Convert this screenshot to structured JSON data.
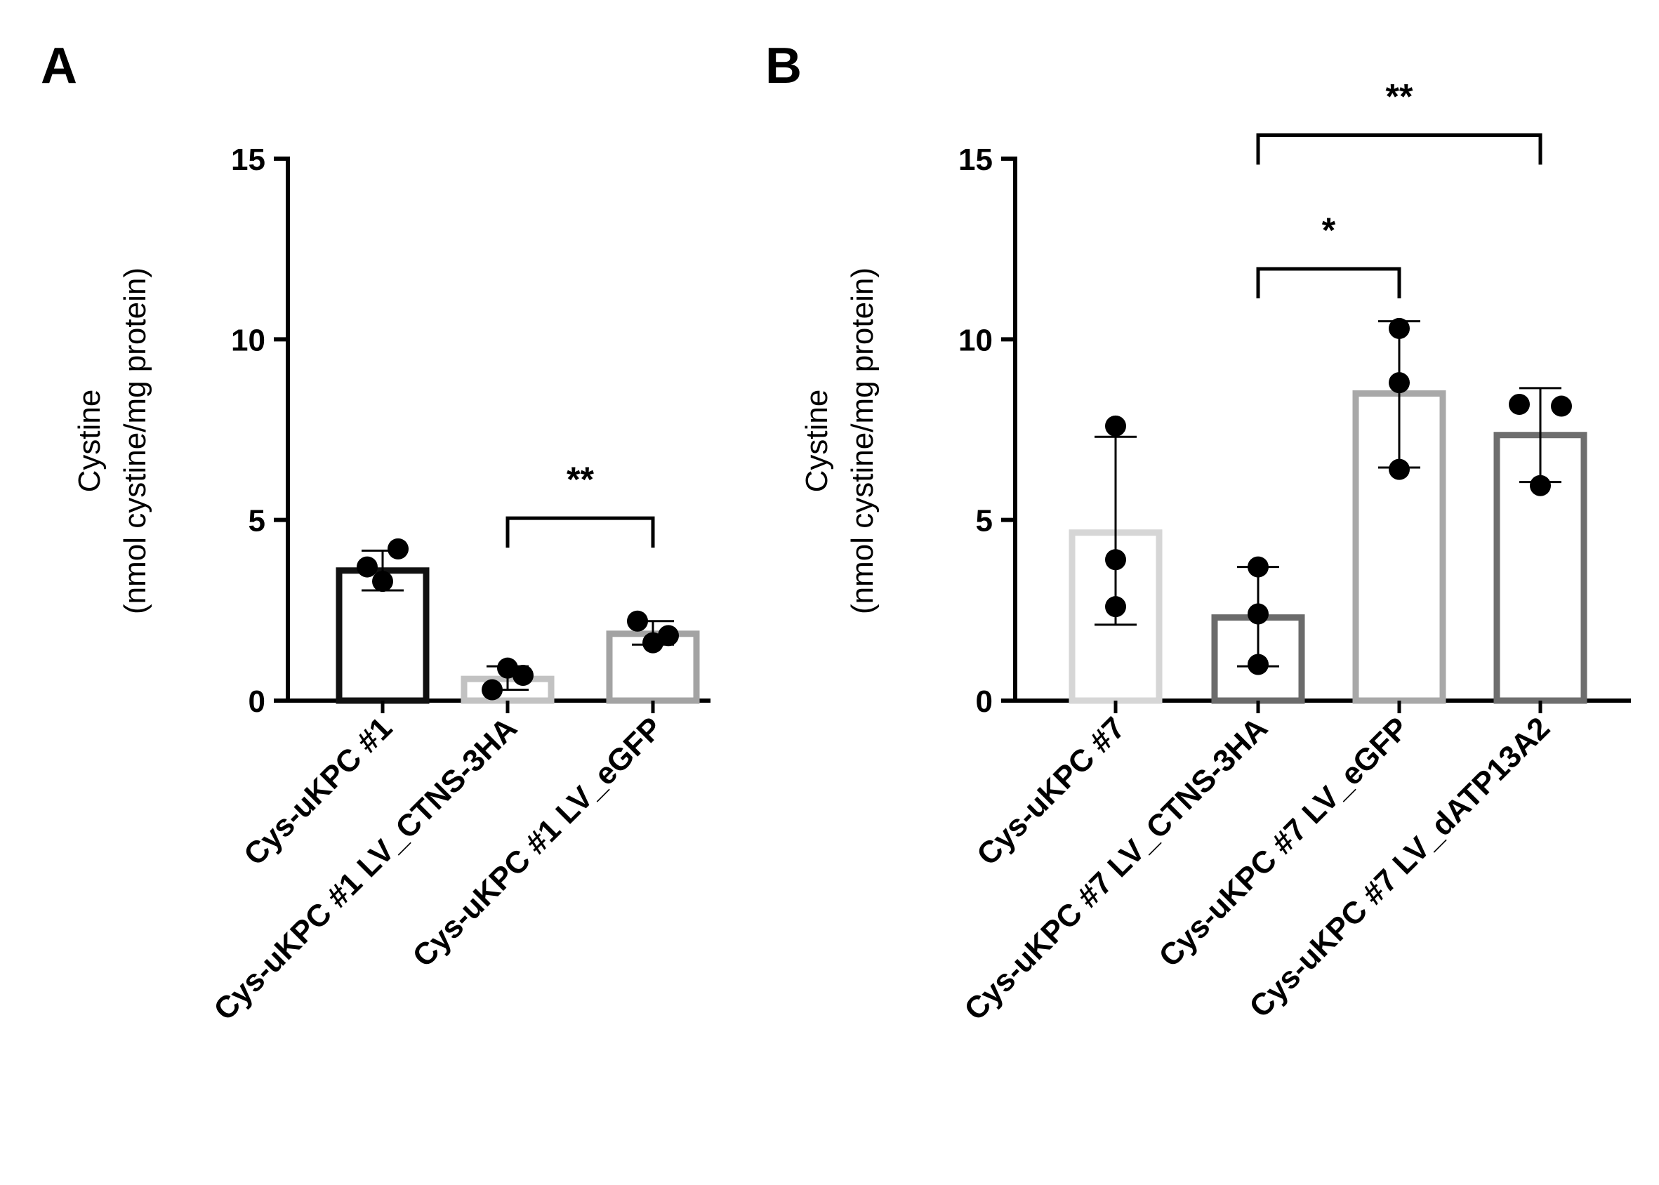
{
  "chart_data": [
    {
      "panel": "A",
      "type": "bar",
      "ylabel_line1": "Cystine",
      "ylabel_line2": "(nmol cystine/mg protein)",
      "ylim": [
        0,
        15
      ],
      "yticks": [
        0,
        5,
        10,
        15
      ],
      "categories": [
        "Cys-uKPC #1",
        "Cys-uKPC #1 LV_CTNS-3HA",
        "Cys-uKPC #1 LV_eGFP"
      ],
      "values": [
        3.6,
        0.6,
        1.85
      ],
      "errors": [
        [
          3.05,
          4.15
        ],
        [
          0.3,
          0.95
        ],
        [
          1.55,
          2.2
        ]
      ],
      "points": [
        [
          3.7,
          3.3,
          4.2
        ],
        [
          0.3,
          0.9,
          0.7
        ],
        [
          2.2,
          1.6,
          1.8
        ]
      ],
      "bar_colors": [
        "#111111",
        "#c2c2c2",
        "#a3a3a3"
      ],
      "significance": [
        {
          "from": 1,
          "to": 2,
          "label": "**",
          "level": 5.05
        }
      ]
    },
    {
      "panel": "B",
      "type": "bar",
      "ylabel_line1": "Cystine",
      "ylabel_line2": "(nmol cystine/mg protein)",
      "ylim": [
        0,
        15
      ],
      "yticks": [
        0,
        5,
        10,
        15
      ],
      "categories": [
        "Cys-uKPC #7",
        "Cys-uKPC #7 LV_CTNS-3HA",
        "Cys-uKPC #7 LV_eGFP",
        "Cys-uKPC #7 LV_dATP13A2"
      ],
      "values": [
        4.65,
        2.3,
        8.5,
        7.35
      ],
      "errors": [
        [
          2.1,
          7.3
        ],
        [
          0.95,
          3.7
        ],
        [
          6.45,
          10.5
        ],
        [
          6.05,
          8.65
        ]
      ],
      "points": [
        [
          7.6,
          3.9,
          2.6
        ],
        [
          3.7,
          2.4,
          1.0
        ],
        [
          10.3,
          8.8,
          6.4
        ],
        [
          8.2,
          8.15,
          5.95
        ]
      ],
      "bar_colors": [
        "#d6d6d6",
        "#6b6b6b",
        "#a8a8a8",
        "#6e6e6e"
      ],
      "significance": [
        {
          "from": 1,
          "to": 2,
          "label": "*",
          "level": 11.95
        },
        {
          "from": 1,
          "to": 3,
          "label": "**",
          "level": 15.65
        }
      ]
    }
  ]
}
